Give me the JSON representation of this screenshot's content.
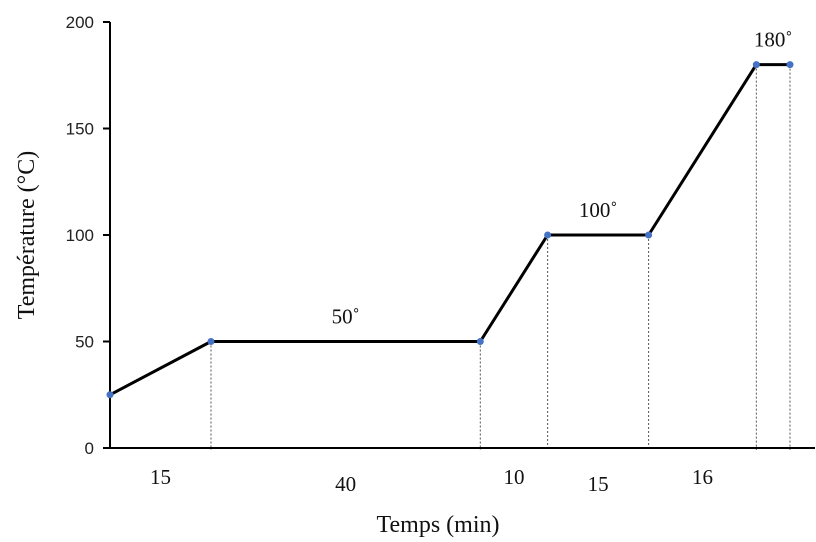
{
  "chart_data": {
    "type": "line",
    "title": "",
    "xlabel": "Temps (min)",
    "ylabel": "Température (°C)",
    "ylim": [
      0,
      200
    ],
    "yticks": [
      0,
      50,
      100,
      150,
      200
    ],
    "x": [
      0,
      15,
      55,
      65,
      80,
      96,
      101
    ],
    "y": [
      25,
      50,
      50,
      100,
      100,
      180,
      180
    ],
    "segment_labels": [
      {
        "text": "15",
        "from": 0,
        "to": 15
      },
      {
        "text": "40",
        "from": 15,
        "to": 55
      },
      {
        "text": "10",
        "from": 55,
        "to": 65
      },
      {
        "text": "15",
        "from": 65,
        "to": 80
      },
      {
        "text": "16",
        "from": 80,
        "to": 96
      }
    ],
    "annotations": [
      {
        "text": "50˚",
        "x": 35,
        "y": 50
      },
      {
        "text": "100˚",
        "x": 72.5,
        "y": 100
      },
      {
        "text": "180˚",
        "x": 98.5,
        "y": 180
      }
    ],
    "colors": {
      "line": "#000000",
      "marker": "#4472c4",
      "axis": "#000000"
    },
    "grid": false
  }
}
